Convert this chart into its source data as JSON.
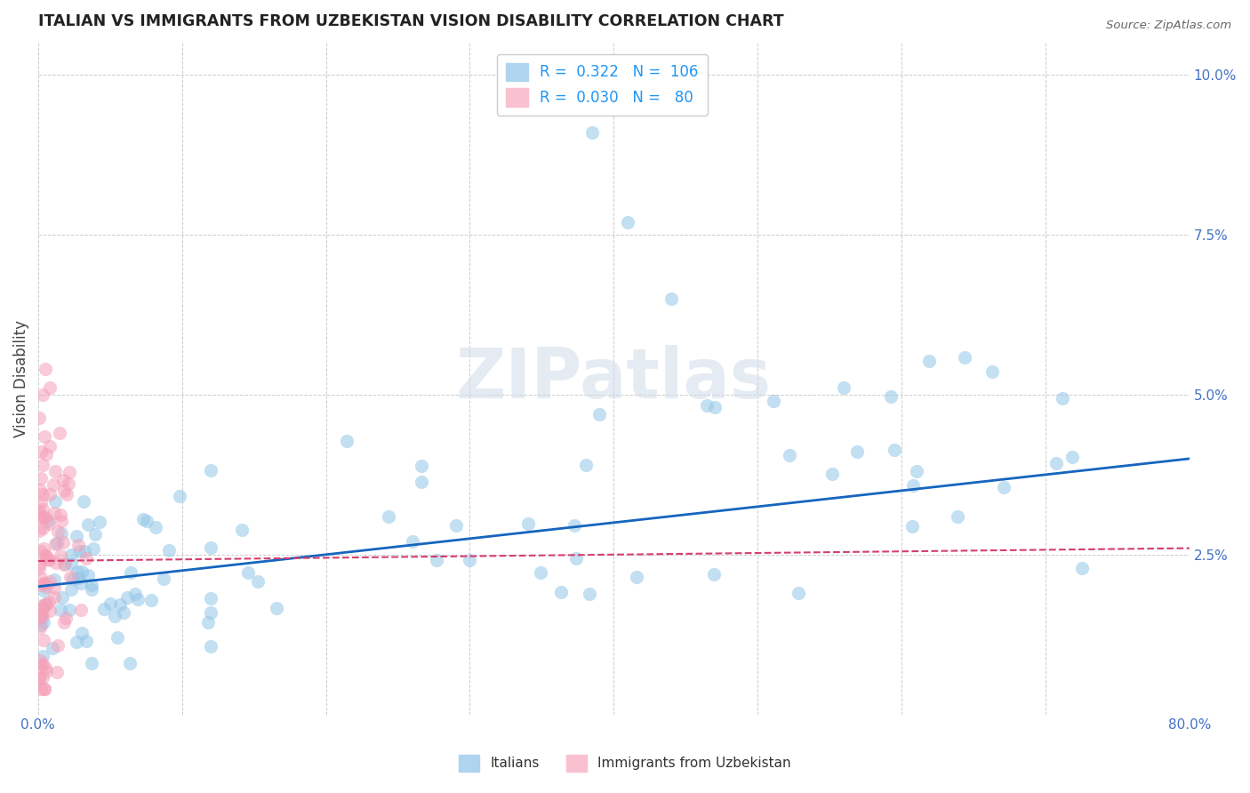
{
  "title": "ITALIAN VS IMMIGRANTS FROM UZBEKISTAN VISION DISABILITY CORRELATION CHART",
  "source": "Source: ZipAtlas.com",
  "ylabel": "Vision Disability",
  "xlim": [
    0.0,
    0.8
  ],
  "ylim": [
    0.0,
    0.105
  ],
  "watermark": "ZIPatlas",
  "scatter_italian_color": "#93c6e8",
  "scatter_uzbek_color": "#f5a0b8",
  "trend_italian_color": "#1565C0",
  "trend_uzbek_color": "#d43f6e",
  "trend_italian_start_y": 0.02,
  "trend_italian_end_y": 0.04,
  "trend_uzbek_start_y": 0.024,
  "trend_uzbek_end_y": 0.026,
  "background_color": "#ffffff",
  "grid_color": "#cccccc",
  "tick_color": "#4472C4",
  "title_color": "#222222",
  "marker_size": 120,
  "marker_alpha": 0.55
}
